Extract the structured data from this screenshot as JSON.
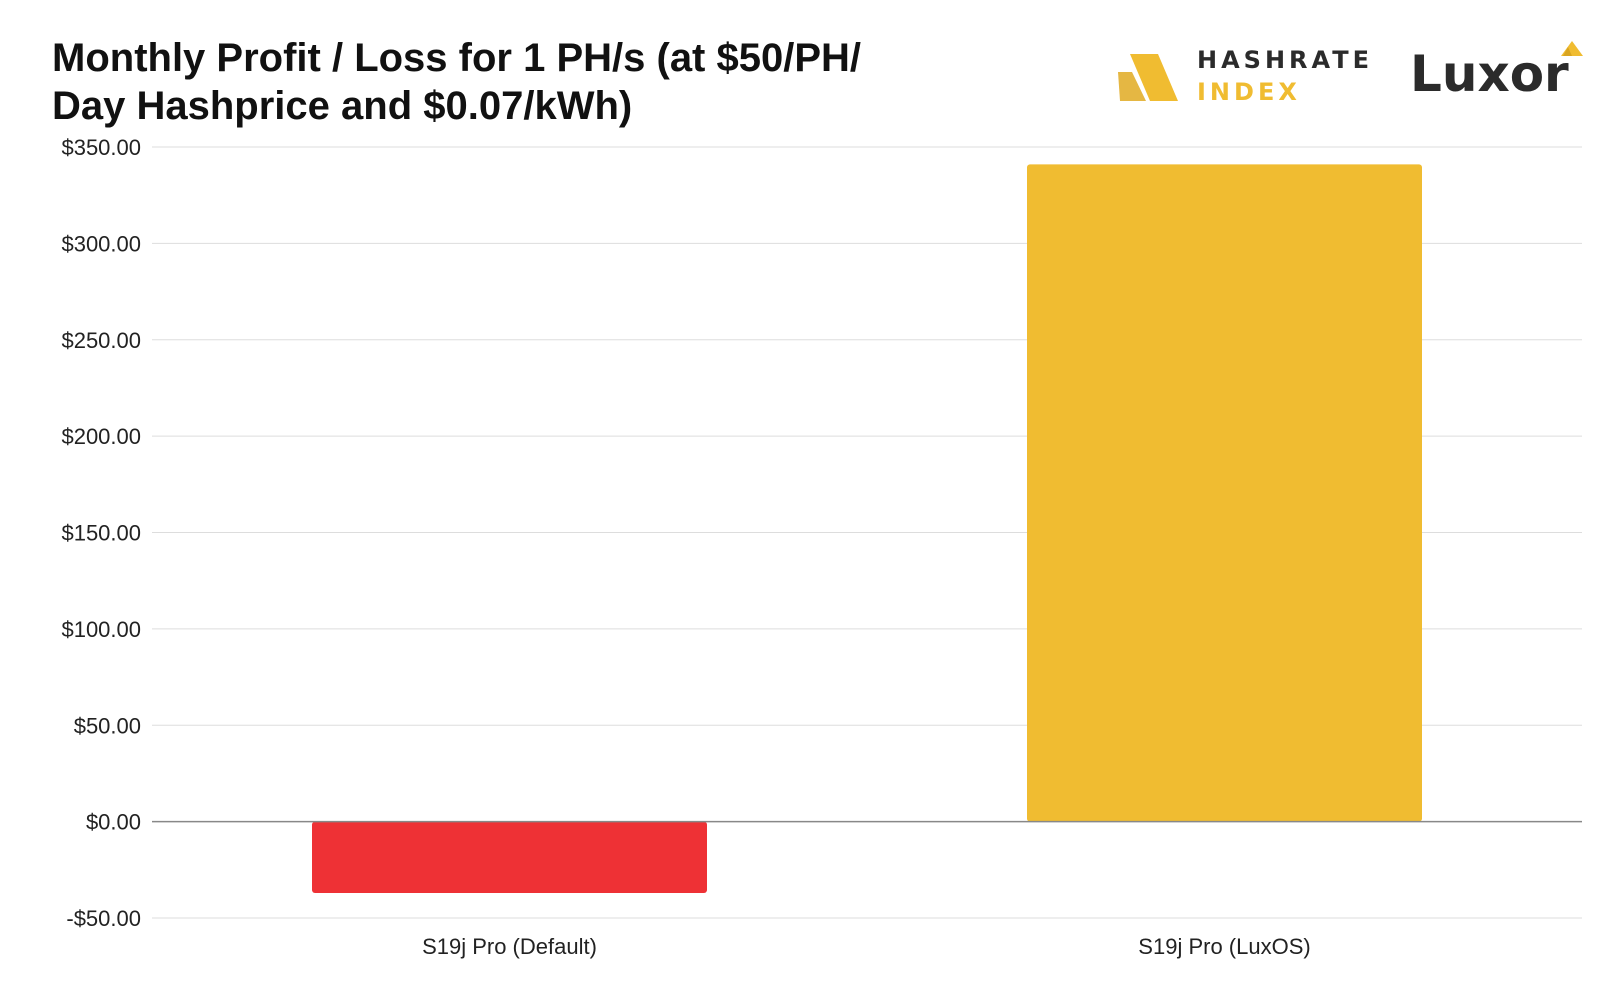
{
  "chart_data": {
    "type": "bar",
    "title_lines": [
      "Monthly Profit / Loss for 1 PH/s (at $50/PH/",
      "Day Hashprice and $0.07/kWh)"
    ],
    "categories": [
      "S19j Pro (Default)",
      "S19j Pro (LuxOS)"
    ],
    "values": [
      -37,
      341
    ],
    "bar_colors": [
      "#ee3135",
      "#f0bc31"
    ],
    "ylim": [
      -50,
      350
    ],
    "yticks": [
      -50,
      0,
      50,
      100,
      150,
      200,
      250,
      300,
      350
    ],
    "ytick_labels": [
      "-$50.00",
      "$0.00",
      "$50.00",
      "$100.00",
      "$150.00",
      "$200.00",
      "$250.00",
      "$300.00",
      "$350.00"
    ],
    "grid": true,
    "legend": "none"
  },
  "logos": {
    "hashrate_index": {
      "line1": "HASHRATE",
      "line2": "INDEX",
      "color_dark": "#2b2b2b",
      "color_accent": "#f0bc31",
      "icon": "hashrate-index-icon"
    },
    "luxor": {
      "text": "Luxor",
      "color": "#2b2b2b",
      "mark_color": "#f0bc31",
      "icon": "luxor-mark-icon"
    }
  },
  "colors": {
    "grid": "#dddddd",
    "zero_line": "#888888"
  }
}
